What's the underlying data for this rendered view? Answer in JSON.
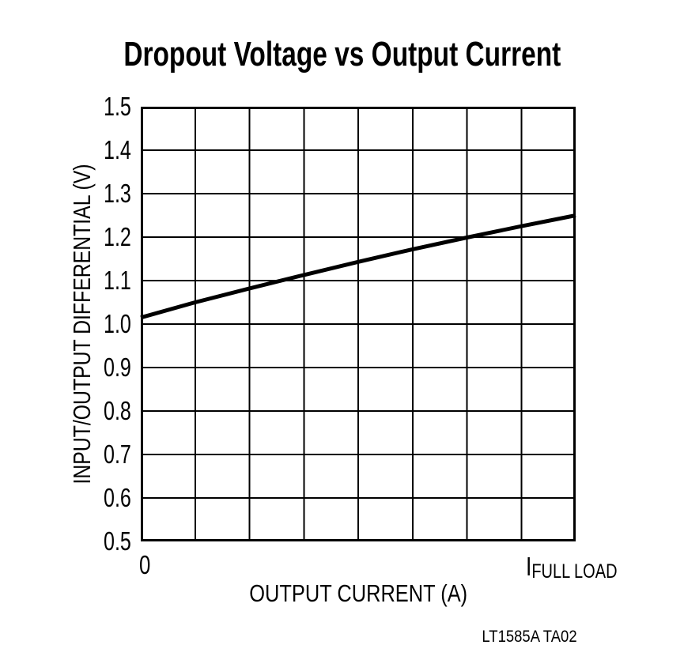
{
  "chart_data": {
    "type": "line",
    "title": "Dropout Voltage vs Output Current",
    "xlabel": "OUTPUT CURRENT (A)",
    "ylabel": "INPUT/OUTPUT DIFFERENTIAL (V)",
    "annotation": "LT1585A TA02",
    "xlim": [
      0,
      1
    ],
    "ylim": [
      0.5,
      1.5
    ],
    "x_ticks": {
      "left": "0",
      "right_symbol": "I",
      "right_subscript": "FULL LOAD"
    },
    "y_tick_labels": [
      "1.5",
      "1.4",
      "1.3",
      "1.2",
      "1.1",
      "1.0",
      "0.9",
      "0.8",
      "0.7",
      "0.6",
      "0.5"
    ],
    "grid": {
      "on": true,
      "x_divisions": 8,
      "y_divisions": 10
    },
    "legend": "none",
    "series": [
      {
        "name": "Dropout Voltage",
        "x": [
          0,
          0.125,
          0.25,
          0.375,
          0.5,
          0.625,
          0.75,
          0.875,
          1.0
        ],
        "y": [
          1.015,
          1.05,
          1.082,
          1.113,
          1.143,
          1.172,
          1.199,
          1.225,
          1.25
        ]
      }
    ],
    "colors": {
      "line": "#000000",
      "grid": "#000000",
      "border": "#000000",
      "text": "#000000",
      "background": "#ffffff"
    }
  }
}
